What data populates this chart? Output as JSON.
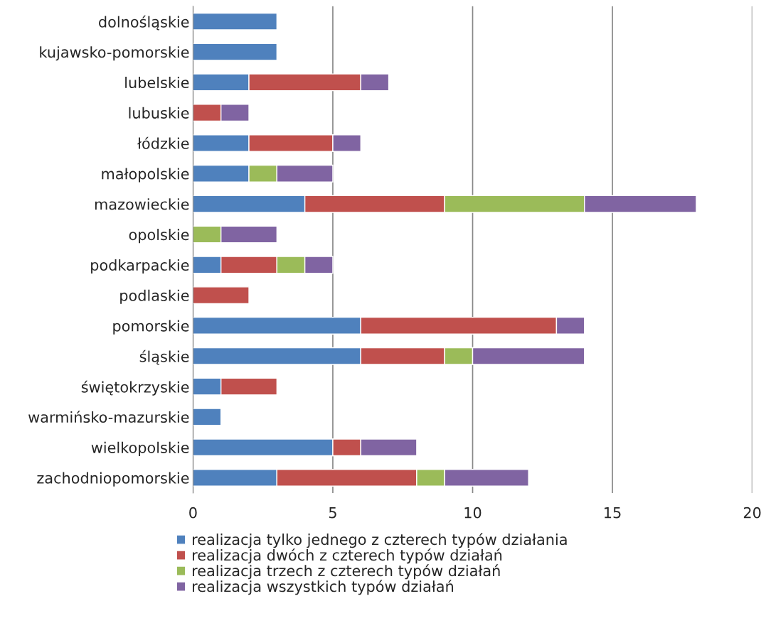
{
  "chart_data": {
    "type": "bar",
    "orientation": "horizontal",
    "stacked": true,
    "categories": [
      "dolnośląskie",
      "kujawsko-pomorskie",
      "lubelskie",
      "lubuskie",
      "łódzkie",
      "małopolskie",
      "mazowieckie",
      "opolskie",
      "podkarpackie",
      "podlaskie",
      "pomorskie",
      "śląskie",
      "świętokrzyskie",
      "warmińsko-mazurskie",
      "wielkopolskie",
      "zachodniopomorskie"
    ],
    "series": [
      {
        "name": "realizacja tylko jednego z czterech typów działania",
        "color": "#4f81bd",
        "values": [
          3,
          3,
          2,
          null,
          2,
          2,
          4,
          null,
          1,
          null,
          6,
          6,
          1,
          1,
          5,
          3
        ]
      },
      {
        "name": "realizacja dwóch z czterech typów działań",
        "color": "#c0504d",
        "values": [
          null,
          null,
          4,
          1,
          3,
          null,
          5,
          null,
          2,
          2,
          7,
          3,
          2,
          null,
          1,
          5
        ]
      },
      {
        "name": "realizacja trzech z czterech typów działań",
        "color": "#9bbb59",
        "values": [
          null,
          null,
          null,
          null,
          null,
          1,
          5,
          1,
          1,
          null,
          null,
          1,
          null,
          null,
          null,
          1
        ]
      },
      {
        "name": "realizacja wszystkich typów działań",
        "color": "#8064a2",
        "values": [
          null,
          null,
          1,
          1,
          1,
          2,
          4,
          2,
          1,
          null,
          1,
          4,
          null,
          null,
          2,
          3
        ]
      }
    ],
    "xlim": [
      0,
      20
    ],
    "xticks": [
      0,
      5,
      10,
      15,
      20
    ],
    "grid": "x",
    "legend": "bottom"
  }
}
